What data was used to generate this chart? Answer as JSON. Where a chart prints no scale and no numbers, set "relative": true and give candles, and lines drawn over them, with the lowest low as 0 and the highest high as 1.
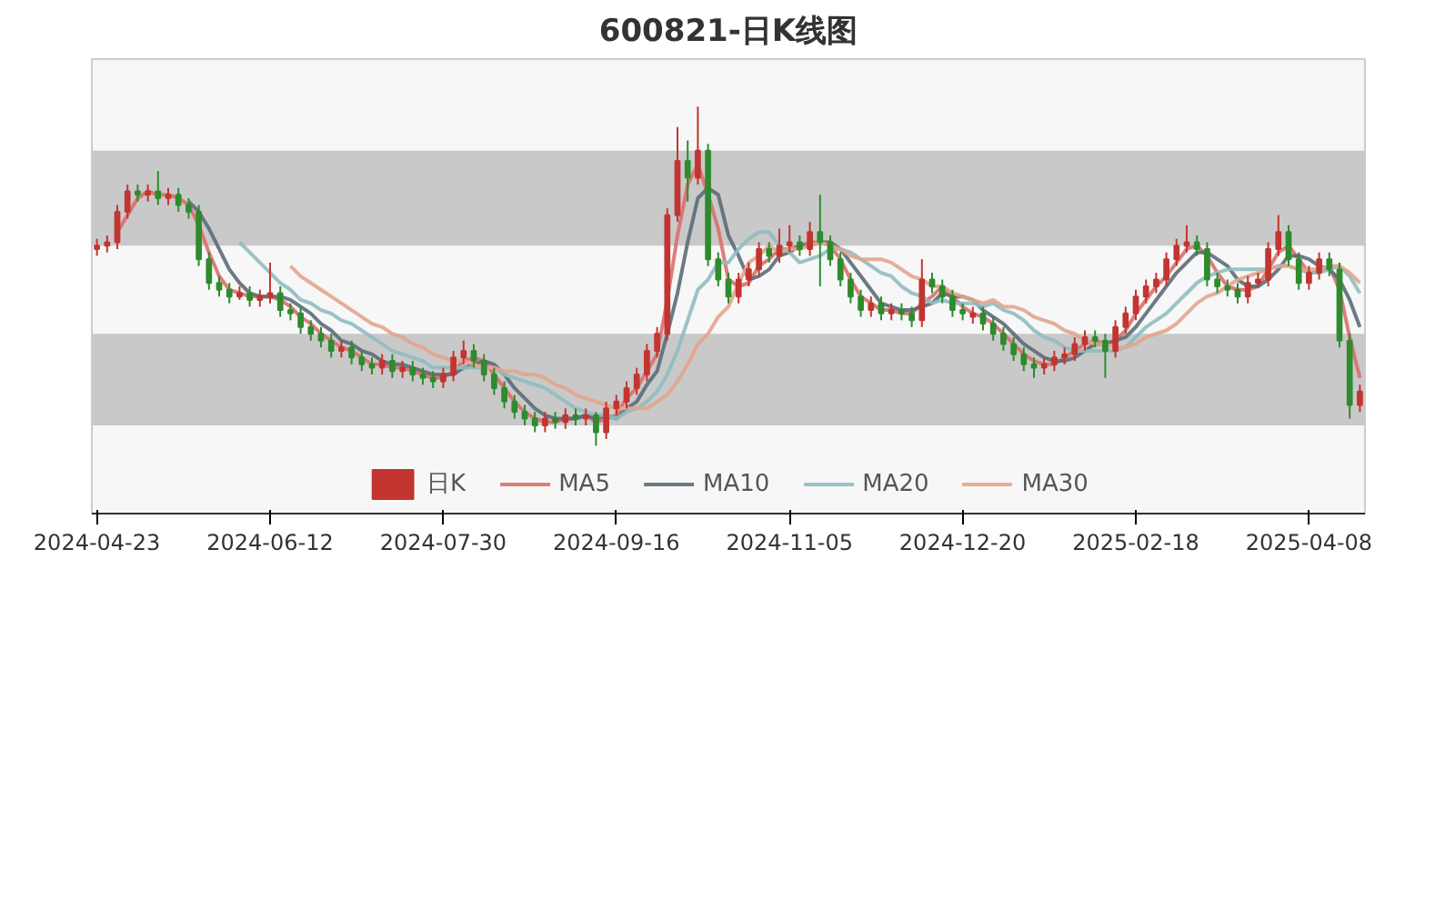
{
  "chart_data": {
    "type": "candlestick",
    "title": "600821-日K线图",
    "relative": true,
    "legend": "bottom",
    "bands": [
      {
        "axis": "y",
        "from": 0.59,
        "to": 0.87,
        "color": "#c9c9c9"
      },
      {
        "axis": "y",
        "from": 0.06,
        "to": 0.33,
        "color": "#c9c9c9"
      }
    ],
    "categories": [
      "2024-04-23",
      null,
      null,
      null,
      null,
      null,
      null,
      null,
      null,
      null,
      null,
      null,
      null,
      null,
      null,
      null,
      null,
      "2024-06-12",
      null,
      null,
      null,
      null,
      null,
      null,
      null,
      null,
      null,
      null,
      null,
      null,
      null,
      null,
      null,
      null,
      "2024-07-30",
      null,
      null,
      null,
      null,
      null,
      null,
      null,
      null,
      null,
      null,
      null,
      null,
      null,
      null,
      null,
      null,
      "2024-09-16",
      null,
      null,
      null,
      null,
      null,
      null,
      null,
      null,
      null,
      null,
      null,
      null,
      null,
      null,
      null,
      null,
      "2024-11-05",
      null,
      null,
      null,
      null,
      null,
      null,
      null,
      null,
      null,
      null,
      null,
      null,
      null,
      null,
      null,
      null,
      "2024-12-20",
      null,
      null,
      null,
      null,
      null,
      null,
      null,
      null,
      null,
      null,
      null,
      null,
      null,
      null,
      null,
      null,
      "2025-02-18",
      null,
      null,
      null,
      null,
      null,
      null,
      null,
      null,
      null,
      null,
      null,
      null,
      null,
      null,
      null,
      null,
      "2025-04-08",
      null,
      null,
      null,
      null,
      null
    ],
    "series": [
      {
        "name": "日K",
        "colors": [
          "#c23531",
          "#c23531",
          "#c23531",
          "#c23531",
          "#2e8b2e",
          "#c23531",
          "#2e8b2e",
          "#c23531",
          "#2e8b2e",
          "#2e8b2e",
          "#2e8b2e",
          "#2e8b2e",
          "#2e8b2e",
          "#2e8b2e",
          "#c23531",
          "#2e8b2e",
          "#c23531",
          "#c23531",
          "#2e8b2e",
          "#2e8b2e",
          "#2e8b2e",
          "#2e8b2e",
          "#2e8b2e",
          "#2e8b2e",
          "#c23531",
          "#2e8b2e",
          "#2e8b2e",
          "#2e8b2e",
          "#c23531",
          "#2e8b2e",
          "#c23531",
          "#2e8b2e",
          "#2e8b2e",
          "#2e8b2e",
          "#c23531",
          "#c23531",
          "#c23531",
          "#2e8b2e",
          "#2e8b2e",
          "#2e8b2e",
          "#2e8b2e",
          "#2e8b2e",
          "#2e8b2e",
          "#2e8b2e",
          "#c23531",
          "#2e8b2e",
          "#c23531",
          "#2e8b2e",
          "#c23531",
          "#2e8b2e",
          "#c23531",
          "#c23531",
          "#c23531",
          "#c23531",
          "#c23531",
          "#c23531",
          "#c23531",
          "#c23531",
          "#2e8b2e",
          "#c23531",
          "#2e8b2e",
          "#2e8b2e",
          "#2e8b2e",
          "#c23531",
          "#c23531",
          "#c23531",
          "#2e8b2e",
          "#c23531",
          "#c23531",
          "#2e8b2e",
          "#c23531",
          "#2e8b2e",
          "#2e8b2e",
          "#2e8b2e",
          "#2e8b2e",
          "#2e8b2e",
          "#c23531",
          "#2e8b2e",
          "#c23531",
          "#2e8b2e",
          "#2e8b2e",
          "#c23531",
          "#2e8b2e",
          "#2e8b2e",
          "#2e8b2e",
          "#2e8b2e",
          "#c23531",
          "#2e8b2e",
          "#2e8b2e",
          "#2e8b2e",
          "#2e8b2e",
          "#2e8b2e",
          "#2e8b2e",
          "#c23531",
          "#c23531",
          "#c23531",
          "#c23531",
          "#c23531",
          "#2e8b2e",
          "#2e8b2e",
          "#c23531",
          "#c23531",
          "#c23531",
          "#c23531",
          "#c23531",
          "#c23531",
          "#c23531",
          "#c23531",
          "#2e8b2e",
          "#2e8b2e",
          "#2e8b2e",
          "#2e8b2e",
          "#2e8b2e",
          "#c23531",
          "#c23531",
          "#c23531",
          "#c23531",
          "#2e8b2e",
          "#2e8b2e",
          "#c23531",
          "#c23531",
          "#2e8b2e",
          "#2e8b2e",
          "#2e8b2e",
          "#c23531"
        ],
        "ohlc": [
          [
            0.58,
            0.61,
            0.56,
            0.59
          ],
          [
            0.59,
            0.62,
            0.57,
            0.6
          ],
          [
            0.6,
            0.71,
            0.58,
            0.69
          ],
          [
            0.69,
            0.77,
            0.67,
            0.75
          ],
          [
            0.75,
            0.77,
            0.72,
            0.74
          ],
          [
            0.74,
            0.77,
            0.72,
            0.75
          ],
          [
            0.75,
            0.81,
            0.71,
            0.73
          ],
          [
            0.73,
            0.76,
            0.71,
            0.74
          ],
          [
            0.74,
            0.76,
            0.69,
            0.71
          ],
          [
            0.71,
            0.73,
            0.67,
            0.69
          ],
          [
            0.69,
            0.71,
            0.53,
            0.55
          ],
          [
            0.55,
            0.57,
            0.46,
            0.48
          ],
          [
            0.48,
            0.5,
            0.44,
            0.46
          ],
          [
            0.46,
            0.48,
            0.42,
            0.44
          ],
          [
            0.44,
            0.47,
            0.43,
            0.45
          ],
          [
            0.45,
            0.47,
            0.41,
            0.43
          ],
          [
            0.43,
            0.46,
            0.41,
            0.44
          ],
          [
            0.44,
            0.54,
            0.42,
            0.45
          ],
          [
            0.45,
            0.47,
            0.38,
            0.4
          ],
          [
            0.4,
            0.42,
            0.37,
            0.39
          ],
          [
            0.39,
            0.41,
            0.33,
            0.35
          ],
          [
            0.35,
            0.37,
            0.31,
            0.33
          ],
          [
            0.33,
            0.35,
            0.29,
            0.31
          ],
          [
            0.31,
            0.33,
            0.26,
            0.28
          ],
          [
            0.28,
            0.31,
            0.26,
            0.29
          ],
          [
            0.29,
            0.31,
            0.24,
            0.26
          ],
          [
            0.26,
            0.28,
            0.22,
            0.24
          ],
          [
            0.24,
            0.26,
            0.21,
            0.23
          ],
          [
            0.23,
            0.27,
            0.21,
            0.25
          ],
          [
            0.25,
            0.27,
            0.2,
            0.22
          ],
          [
            0.22,
            0.25,
            0.2,
            0.23
          ],
          [
            0.23,
            0.25,
            0.19,
            0.21
          ],
          [
            0.21,
            0.23,
            0.18,
            0.2
          ],
          [
            0.2,
            0.22,
            0.17,
            0.19
          ],
          [
            0.19,
            0.23,
            0.17,
            0.21
          ],
          [
            0.21,
            0.28,
            0.19,
            0.26
          ],
          [
            0.26,
            0.31,
            0.24,
            0.28
          ],
          [
            0.28,
            0.3,
            0.23,
            0.25
          ],
          [
            0.25,
            0.27,
            0.19,
            0.21
          ],
          [
            0.21,
            0.23,
            0.15,
            0.17
          ],
          [
            0.17,
            0.19,
            0.11,
            0.13
          ],
          [
            0.13,
            0.15,
            0.08,
            0.1
          ],
          [
            0.1,
            0.12,
            0.06,
            0.08
          ],
          [
            0.08,
            0.1,
            0.04,
            0.06
          ],
          [
            0.06,
            0.1,
            0.04,
            0.08
          ],
          [
            0.08,
            0.1,
            0.05,
            0.07
          ],
          [
            0.07,
            0.11,
            0.05,
            0.09
          ],
          [
            0.09,
            0.11,
            0.06,
            0.08
          ],
          [
            0.08,
            0.11,
            0.06,
            0.09
          ],
          [
            0.09,
            0.1,
            0,
            0.04
          ],
          [
            0.04,
            0.13,
            0.02,
            0.11
          ],
          [
            0.11,
            0.15,
            0.09,
            0.13
          ],
          [
            0.13,
            0.19,
            0.11,
            0.17
          ],
          [
            0.17,
            0.23,
            0.15,
            0.21
          ],
          [
            0.21,
            0.3,
            0.19,
            0.28
          ],
          [
            0.28,
            0.35,
            0.26,
            0.33
          ],
          [
            0.33,
            0.7,
            0.31,
            0.68
          ],
          [
            0.68,
            0.94,
            0.66,
            0.84
          ],
          [
            0.84,
            0.9,
            0.72,
            0.79
          ],
          [
            0.79,
            1,
            0.77,
            0.87
          ],
          [
            0.87,
            0.89,
            0.53,
            0.55
          ],
          [
            0.55,
            0.57,
            0.47,
            0.49
          ],
          [
            0.49,
            0.51,
            0.42,
            0.44
          ],
          [
            0.44,
            0.51,
            0.42,
            0.49
          ],
          [
            0.49,
            0.54,
            0.47,
            0.52
          ],
          [
            0.52,
            0.6,
            0.5,
            0.58
          ],
          [
            0.58,
            0.6,
            0.54,
            0.56
          ],
          [
            0.56,
            0.64,
            0.54,
            0.59
          ],
          [
            0.59,
            0.65,
            0.57,
            0.6
          ],
          [
            0.6,
            0.62,
            0.56,
            0.58
          ],
          [
            0.58,
            0.66,
            0.56,
            0.63
          ],
          [
            0.63,
            0.74,
            0.47,
            0.6
          ],
          [
            0.6,
            0.62,
            0.53,
            0.55
          ],
          [
            0.55,
            0.57,
            0.47,
            0.49
          ],
          [
            0.49,
            0.51,
            0.42,
            0.44
          ],
          [
            0.44,
            0.46,
            0.38,
            0.4
          ],
          [
            0.4,
            0.44,
            0.38,
            0.42
          ],
          [
            0.42,
            0.44,
            0.37,
            0.39
          ],
          [
            0.39,
            0.42,
            0.37,
            0.4
          ],
          [
            0.4,
            0.42,
            0.37,
            0.39
          ],
          [
            0.39,
            0.41,
            0.35,
            0.37
          ],
          [
            0.37,
            0.55,
            0.35,
            0.49
          ],
          [
            0.49,
            0.51,
            0.45,
            0.47
          ],
          [
            0.47,
            0.49,
            0.42,
            0.44
          ],
          [
            0.44,
            0.46,
            0.38,
            0.4
          ],
          [
            0.4,
            0.42,
            0.37,
            0.39
          ],
          [
            0.38,
            0.41,
            0.36,
            0.39
          ],
          [
            0.39,
            0.41,
            0.34,
            0.36
          ],
          [
            0.36,
            0.38,
            0.31,
            0.33
          ],
          [
            0.33,
            0.35,
            0.28,
            0.3
          ],
          [
            0.3,
            0.32,
            0.25,
            0.27
          ],
          [
            0.27,
            0.29,
            0.22,
            0.24
          ],
          [
            0.24,
            0.26,
            0.2,
            0.23
          ],
          [
            0.23,
            0.26,
            0.21,
            0.24
          ],
          [
            0.24,
            0.28,
            0.22,
            0.26
          ],
          [
            0.26,
            0.29,
            0.24,
            0.27
          ],
          [
            0.27,
            0.32,
            0.25,
            0.3
          ],
          [
            0.3,
            0.34,
            0.28,
            0.32
          ],
          [
            0.32,
            0.34,
            0.29,
            0.31
          ],
          [
            0.31,
            0.33,
            0.2,
            0.28
          ],
          [
            0.28,
            0.37,
            0.26,
            0.35
          ],
          [
            0.35,
            0.41,
            0.33,
            0.39
          ],
          [
            0.39,
            0.46,
            0.37,
            0.44
          ],
          [
            0.44,
            0.49,
            0.42,
            0.47
          ],
          [
            0.47,
            0.51,
            0.45,
            0.49
          ],
          [
            0.49,
            0.57,
            0.47,
            0.55
          ],
          [
            0.55,
            0.61,
            0.53,
            0.59
          ],
          [
            0.59,
            0.65,
            0.57,
            0.6
          ],
          [
            0.6,
            0.62,
            0.56,
            0.58
          ],
          [
            0.58,
            0.6,
            0.47,
            0.49
          ],
          [
            0.49,
            0.51,
            0.45,
            0.47
          ],
          [
            0.47,
            0.49,
            0.44,
            0.46
          ],
          [
            0.46,
            0.48,
            0.42,
            0.44
          ],
          [
            0.44,
            0.5,
            0.42,
            0.48
          ],
          [
            0.48,
            0.51,
            0.47,
            0.49
          ],
          [
            0.49,
            0.6,
            0.47,
            0.58
          ],
          [
            0.58,
            0.68,
            0.56,
            0.63
          ],
          [
            0.63,
            0.65,
            0.53,
            0.55
          ],
          [
            0.55,
            0.57,
            0.46,
            0.48
          ],
          [
            0.48,
            0.53,
            0.46,
            0.51
          ],
          [
            0.51,
            0.57,
            0.49,
            0.55
          ],
          [
            0.55,
            0.57,
            0.5,
            0.52
          ],
          [
            0.52,
            0.54,
            0.29,
            0.31
          ],
          [
            0.31,
            0.33,
            0.08,
            0.12
          ],
          [
            0.12,
            0.18,
            0.1,
            0.16
          ]
        ]
      },
      {
        "name": "MA5",
        "type": "line",
        "color": "#d9706b",
        "values": [
          null,
          null,
          0.63,
          0.68,
          0.73,
          0.75,
          0.74,
          0.74,
          0.73,
          0.71,
          0.65,
          0.57,
          0.5,
          0.46,
          0.45,
          0.44,
          0.44,
          0.44,
          0.43,
          0.41,
          0.38,
          0.36,
          0.33,
          0.31,
          0.29,
          0.28,
          0.26,
          0.24,
          0.24,
          0.23,
          0.23,
          0.22,
          0.21,
          0.2,
          0.2,
          0.22,
          0.25,
          0.26,
          0.25,
          0.21,
          0.17,
          0.13,
          0.1,
          0.08,
          0.07,
          0.07,
          0.08,
          0.08,
          0.09,
          0.07,
          0.08,
          0.09,
          0.14,
          0.17,
          0.22,
          0.27,
          0.43,
          0.62,
          0.77,
          0.83,
          0.74,
          0.64,
          0.49,
          0.47,
          0.48,
          0.53,
          0.55,
          0.58,
          0.58,
          0.59,
          0.6,
          0.6,
          0.59,
          0.55,
          0.49,
          0.44,
          0.42,
          0.4,
          0.4,
          0.39,
          0.39,
          0.42,
          0.44,
          0.47,
          0.44,
          0.41,
          0.39,
          0.38,
          0.36,
          0.33,
          0.3,
          0.27,
          0.25,
          0.24,
          0.24,
          0.26,
          0.28,
          0.3,
          0.31,
          0.3,
          0.31,
          0.34,
          0.39,
          0.43,
          0.47,
          0.5,
          0.54,
          0.58,
          0.59,
          0.56,
          0.51,
          0.47,
          0.46,
          0.46,
          0.47,
          0.52,
          0.57,
          0.59,
          0.55,
          0.51,
          0.51,
          0.53,
          0.46,
          0.32,
          0.2
        ]
      },
      {
        "name": "MA10",
        "type": "line",
        "color": "#5c6b78",
        "values": [
          null,
          null,
          null,
          null,
          null,
          null,
          null,
          null,
          null,
          0.72,
          0.69,
          0.64,
          0.58,
          0.52,
          0.48,
          0.45,
          0.44,
          0.44,
          0.44,
          0.43,
          0.41,
          0.39,
          0.36,
          0.34,
          0.31,
          0.3,
          0.28,
          0.27,
          0.25,
          0.24,
          0.24,
          0.23,
          0.22,
          0.21,
          0.21,
          0.21,
          0.23,
          0.24,
          0.25,
          0.24,
          0.21,
          0.17,
          0.14,
          0.11,
          0.09,
          0.08,
          0.08,
          0.08,
          0.09,
          0.08,
          0.09,
          0.08,
          0.11,
          0.13,
          0.18,
          0.22,
          0.33,
          0.45,
          0.6,
          0.73,
          0.76,
          0.74,
          0.62,
          0.56,
          0.49,
          0.5,
          0.52,
          0.56,
          0.57,
          0.59,
          0.59,
          0.6,
          0.6,
          0.58,
          0.54,
          0.5,
          0.46,
          0.42,
          0.41,
          0.4,
          0.4,
          0.41,
          0.42,
          0.45,
          0.44,
          0.44,
          0.43,
          0.4,
          0.38,
          0.36,
          0.33,
          0.3,
          0.28,
          0.26,
          0.25,
          0.25,
          0.26,
          0.28,
          0.3,
          0.3,
          0.31,
          0.32,
          0.35,
          0.39,
          0.43,
          0.47,
          0.51,
          0.54,
          0.57,
          0.57,
          0.55,
          0.53,
          0.49,
          0.47,
          0.47,
          0.49,
          0.52,
          0.56,
          0.56,
          0.55,
          0.53,
          0.52,
          0.49,
          0.43,
          0.35
        ]
      },
      {
        "name": "MA20",
        "type": "line",
        "color": "#8fbcc0",
        "values": [
          null,
          null,
          null,
          null,
          null,
          null,
          null,
          null,
          null,
          null,
          null,
          null,
          null,
          null,
          0.6,
          0.57,
          0.54,
          0.51,
          0.48,
          0.46,
          0.43,
          0.42,
          0.4,
          0.39,
          0.37,
          0.36,
          0.34,
          0.32,
          0.3,
          0.28,
          0.27,
          0.26,
          0.25,
          0.23,
          0.23,
          0.23,
          0.23,
          0.23,
          0.23,
          0.23,
          0.21,
          0.2,
          0.19,
          0.18,
          0.17,
          0.15,
          0.13,
          0.11,
          0.1,
          0.09,
          0.09,
          0.08,
          0.1,
          0.11,
          0.13,
          0.16,
          0.21,
          0.28,
          0.37,
          0.46,
          0.49,
          0.54,
          0.54,
          0.58,
          0.61,
          0.63,
          0.63,
          0.59,
          0.57,
          0.54,
          0.55,
          0.56,
          0.58,
          0.58,
          0.57,
          0.55,
          0.53,
          0.51,
          0.5,
          0.47,
          0.45,
          0.44,
          0.42,
          0.43,
          0.42,
          0.42,
          0.42,
          0.41,
          0.42,
          0.4,
          0.39,
          0.37,
          0.34,
          0.32,
          0.31,
          0.29,
          0.28,
          0.28,
          0.28,
          0.28,
          0.28,
          0.29,
          0.32,
          0.35,
          0.37,
          0.39,
          0.42,
          0.45,
          0.48,
          0.5,
          0.51,
          0.52,
          0.52,
          0.52,
          0.52,
          0.52,
          0.53,
          0.53,
          0.52,
          0.51,
          0.51,
          0.52,
          0.53,
          0.5,
          0.45
        ]
      },
      {
        "name": "MA30",
        "type": "line",
        "color": "#e2a58c",
        "values": [
          null,
          null,
          null,
          null,
          null,
          null,
          null,
          null,
          null,
          null,
          null,
          null,
          null,
          null,
          null,
          null,
          null,
          null,
          null,
          0.53,
          0.5,
          0.48,
          0.46,
          0.44,
          0.42,
          0.4,
          0.38,
          0.36,
          0.35,
          0.33,
          0.32,
          0.3,
          0.29,
          0.27,
          0.26,
          0.25,
          0.25,
          0.24,
          0.23,
          0.23,
          0.22,
          0.22,
          0.21,
          0.21,
          0.2,
          0.18,
          0.17,
          0.15,
          0.14,
          0.13,
          0.12,
          0.11,
          0.11,
          0.11,
          0.11,
          0.13,
          0.15,
          0.19,
          0.24,
          0.3,
          0.33,
          0.38,
          0.41,
          0.48,
          0.54,
          0.56,
          0.59,
          0.57,
          0.58,
          0.58,
          0.59,
          0.6,
          0.59,
          0.58,
          0.56,
          0.55,
          0.55,
          0.55,
          0.54,
          0.52,
          0.5,
          0.49,
          0.47,
          0.47,
          0.45,
          0.44,
          0.43,
          0.42,
          0.43,
          0.41,
          0.41,
          0.4,
          0.38,
          0.37,
          0.36,
          0.34,
          0.33,
          0.31,
          0.3,
          0.3,
          0.29,
          0.29,
          0.3,
          0.32,
          0.33,
          0.34,
          0.36,
          0.39,
          0.42,
          0.44,
          0.45,
          0.47,
          0.49,
          0.5,
          0.51,
          0.52,
          0.53,
          0.53,
          0.52,
          0.52,
          0.52,
          0.53,
          0.53,
          0.51,
          0.48
        ]
      }
    ]
  }
}
